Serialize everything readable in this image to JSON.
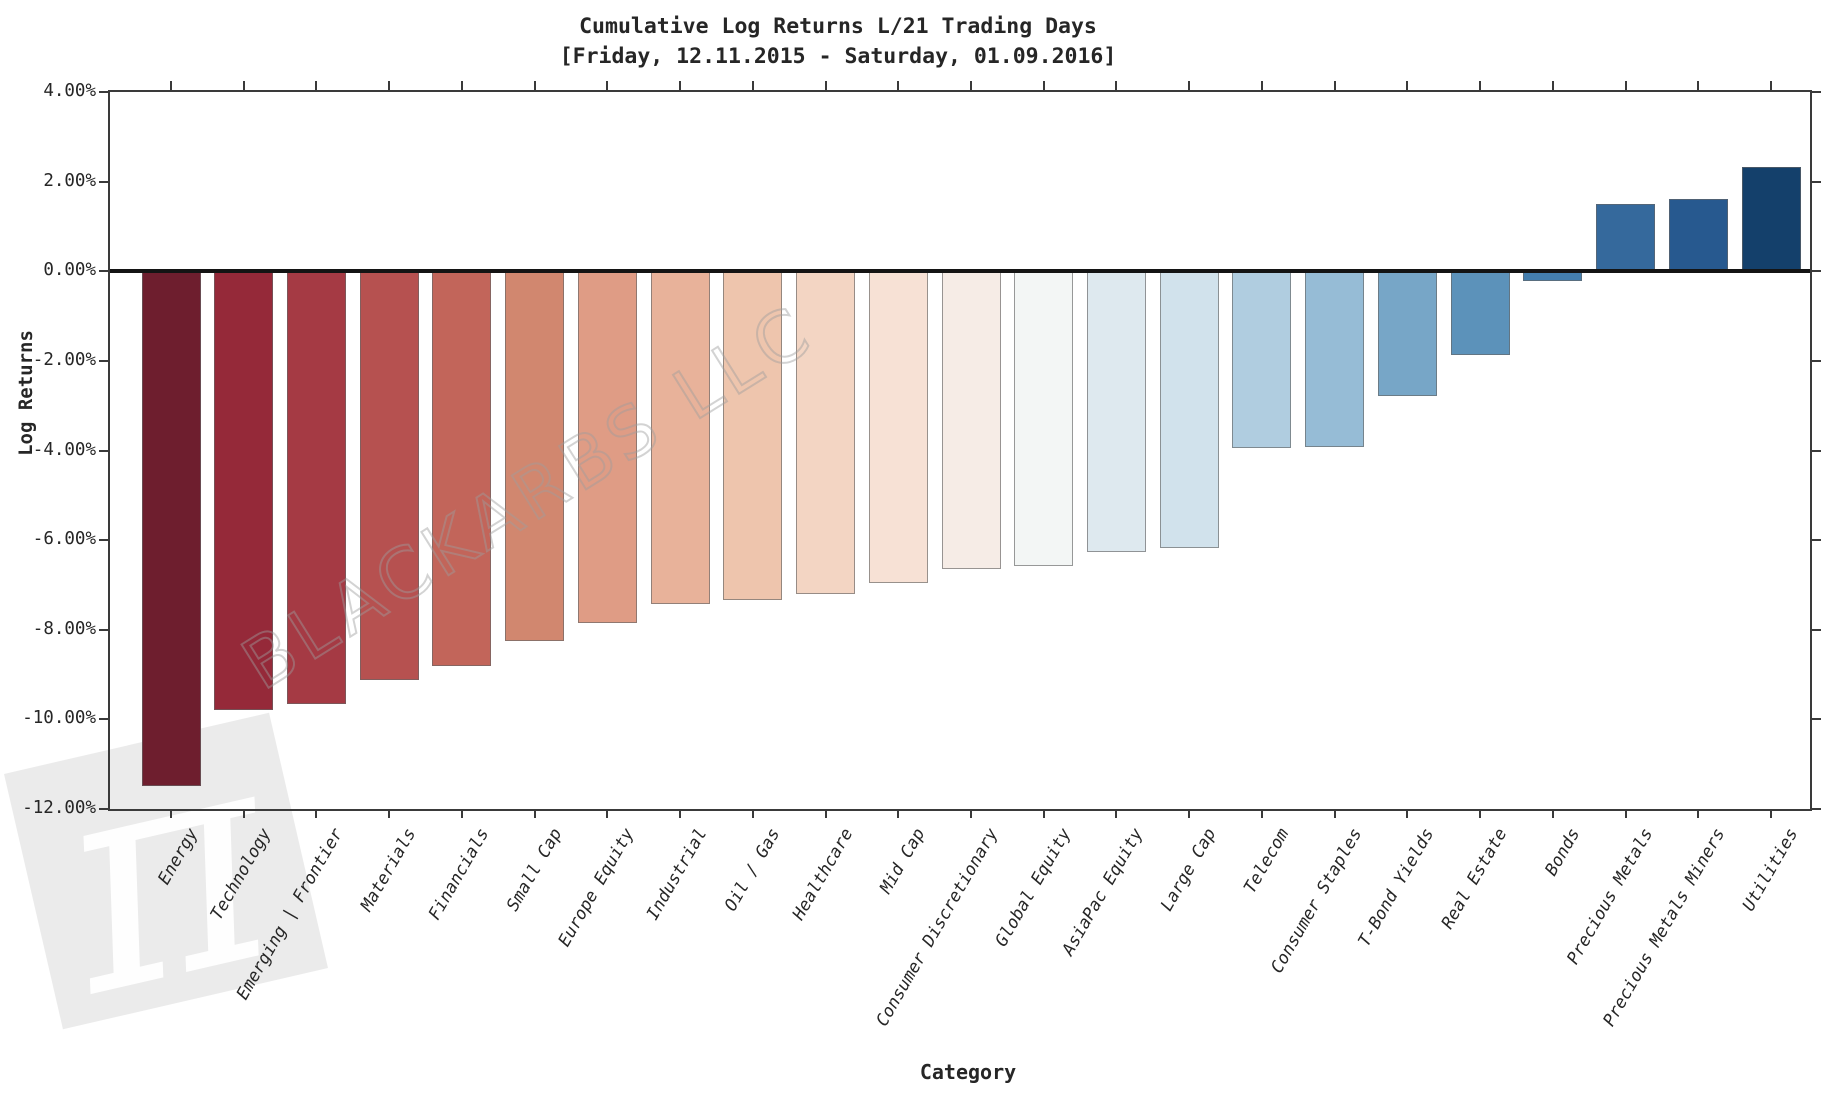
{
  "header": {
    "title_line1": "Cumulative Log Returns L/21 Trading Days",
    "title_line2": "[Friday, 12.11.2015 - Saturday, 01.09.2016]"
  },
  "watermark": {
    "text": "BLACKARBS LLC",
    "symbol": "π"
  },
  "chart_data": {
    "type": "bar",
    "title": "Cumulative Log Returns L/21 Trading Days [Friday, 12.11.2015 - Saturday, 01.09.2016]",
    "xlabel": "Category",
    "ylabel": "Log Returns",
    "unit": "%",
    "ylim": [
      -12,
      4
    ],
    "grid": false,
    "legend": false,
    "ytick_labels": [
      "4.00%",
      "2.00%",
      "0.00%",
      "-2.00%",
      "-4.00%",
      "-6.00%",
      "-8.00%",
      "-10.00%",
      "-12.00%"
    ],
    "ytick_values": [
      4,
      2,
      0,
      -2,
      -4,
      -6,
      -8,
      -10,
      -12
    ],
    "categories": [
      "Energy",
      "Technology",
      "Emerging | Frontier",
      "Materials",
      "Financials",
      "Small Cap",
      "Europe Equity",
      "Industrial",
      "Oil / Gas",
      "Healthcare",
      "Mid Cap",
      "Consumer Discretionary",
      "Global Equity",
      "AsiaPac Equity",
      "Large Cap",
      "Telecom",
      "Consumer Staples",
      "T-Bond Yields",
      "Real Estate",
      "Bonds",
      "Precious Metals",
      "Precious Metals Miners",
      "Utilities"
    ],
    "values": [
      -11.48,
      -9.8,
      -9.65,
      -9.13,
      -8.8,
      -8.25,
      -7.85,
      -7.42,
      -7.33,
      -7.2,
      -6.95,
      -6.64,
      -6.58,
      -6.27,
      -6.17,
      -3.95,
      -3.93,
      -2.78,
      -1.86,
      -0.22,
      1.5,
      1.61,
      2.32
    ],
    "bar_colors": [
      "#6e1e2e",
      "#952939",
      "#a53a44",
      "#b65150",
      "#c2655a",
      "#d1876f",
      "#df9c85",
      "#e8b29a",
      "#eec5ad",
      "#f3d5c3",
      "#f7e1d5",
      "#f6ece6",
      "#f3f6f5",
      "#dee9ef",
      "#d1e2ec",
      "#b0cde0",
      "#96bcd6",
      "#77a6c7",
      "#5c92ba",
      "#447eae",
      "#35699c",
      "#27598f",
      "#14406b"
    ]
  }
}
